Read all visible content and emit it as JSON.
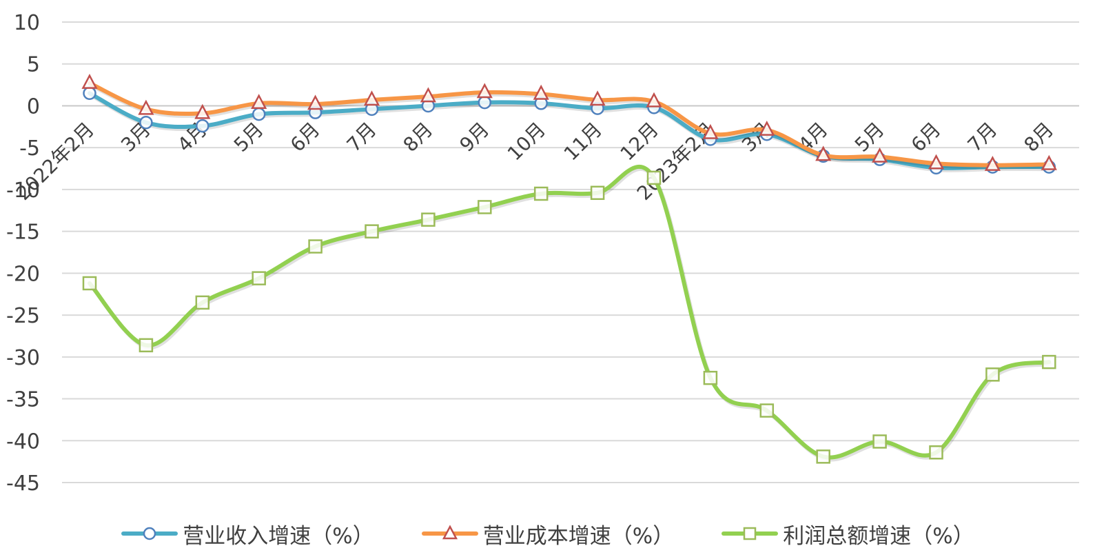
{
  "chart_data": {
    "type": "line",
    "categories": [
      "2022年2月",
      "3月",
      "4月",
      "5月",
      "6月",
      "7月",
      "8月",
      "9月",
      "10月",
      "11月",
      "12月",
      "2023年2月",
      "3月",
      "4月",
      "5月",
      "6月",
      "7月",
      "8月"
    ],
    "series": [
      {
        "name": "营业收入增速（%）",
        "color": "#4bacc6",
        "marker_color": "#4f81bd",
        "marker": "circle",
        "values": [
          1.5,
          -2.0,
          -2.4,
          -1.0,
          -0.8,
          -0.4,
          0.0,
          0.4,
          0.3,
          -0.3,
          -0.2,
          -4.0,
          -3.4,
          -6.0,
          -6.4,
          -7.4,
          -7.3,
          -7.3
        ]
      },
      {
        "name": "营业成本增速（%）",
        "color": "#f79646",
        "marker_color": "#c0504d",
        "marker": "triangle",
        "values": [
          2.7,
          -0.4,
          -0.9,
          0.3,
          0.2,
          0.7,
          1.1,
          1.6,
          1.4,
          0.7,
          0.5,
          -3.3,
          -2.9,
          -5.9,
          -6.1,
          -6.9,
          -7.1,
          -7.0
        ]
      },
      {
        "name": "利润总额增速（%）",
        "color": "#92d050",
        "marker_color": "#9bbb59",
        "marker": "square",
        "values": [
          -21.2,
          -28.6,
          -23.5,
          -20.6,
          -16.8,
          -15.0,
          -13.6,
          -12.1,
          -10.5,
          -10.4,
          -8.6,
          -32.5,
          -36.4,
          -41.9,
          -40.1,
          -41.4,
          -32.1,
          -30.6
        ]
      }
    ],
    "y_ticks": [
      "10",
      "5",
      "0",
      "-5",
      "-10",
      "-15",
      "-20",
      "-25",
      "-30",
      "-35",
      "-40",
      "-45"
    ],
    "ylim": [
      -45,
      10
    ],
    "grid": true,
    "legend_position": "bottom",
    "title": "",
    "xlabel": "",
    "ylabel": ""
  }
}
